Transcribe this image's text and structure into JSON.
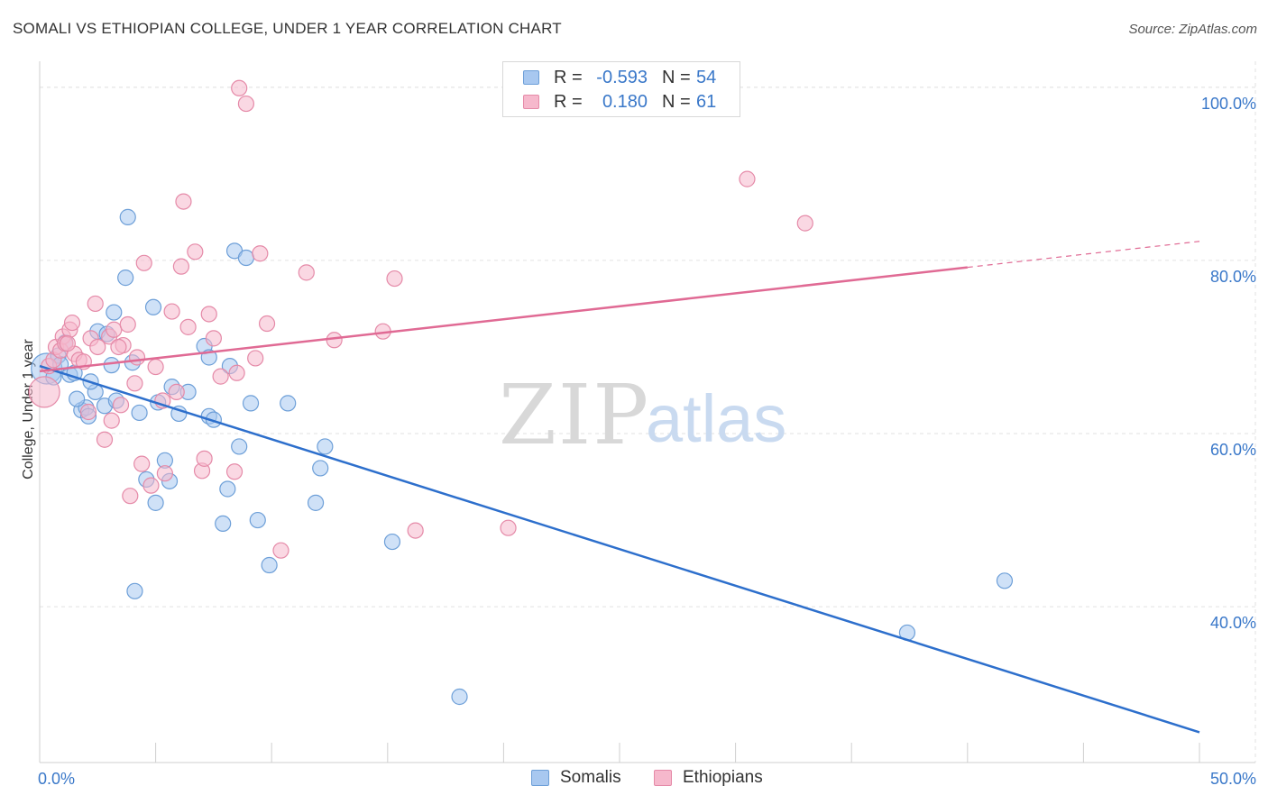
{
  "header": {
    "title": "SOMALI VS ETHIOPIAN COLLEGE, UNDER 1 YEAR CORRELATION CHART",
    "source": "Source: ZipAtlas.com"
  },
  "watermark": {
    "zip": "ZIP",
    "atlas": "atlas"
  },
  "legend_top": {
    "rows": [
      {
        "r_label": "R =",
        "r_value": "-0.593",
        "n_label": "N =",
        "n_value": "54"
      },
      {
        "r_label": "R =",
        "r_value": "0.180",
        "n_label": "N =",
        "n_value": "61"
      }
    ]
  },
  "legend_bottom": {
    "items": [
      "Somalis",
      "Ethiopians"
    ]
  },
  "colors": {
    "blue_fill": "#a8c8f0",
    "blue_stroke": "#6d9fd8",
    "blue_line": "#2d6fcc",
    "pink_fill": "#f6b8cc",
    "pink_stroke": "#e58aa8",
    "pink_line": "#e06a94",
    "axis_text": "#3a78c9",
    "grid": "#e2e2e2"
  },
  "chart_data": {
    "type": "scatter",
    "title": "SOMALI VS ETHIOPIAN COLLEGE, UNDER 1 YEAR CORRELATION CHART",
    "xlabel": "",
    "ylabel": "College, Under 1 year",
    "xlim": [
      0,
      50
    ],
    "ylim": [
      22,
      103
    ],
    "x_ticks": [
      {
        "value": 0,
        "label": "0.0%"
      },
      {
        "value": 50,
        "label": "50.0%"
      }
    ],
    "y_ticks": [
      {
        "value": 40,
        "label": "40.0%"
      },
      {
        "value": 60,
        "label": "60.0%"
      },
      {
        "value": 80,
        "label": "80.0%"
      },
      {
        "value": 100,
        "label": "100.0%"
      }
    ],
    "grid": true,
    "legend_position": "top-center",
    "series": [
      {
        "name": "Somalis",
        "color": "blue",
        "r": -0.593,
        "n": 54,
        "trend": {
          "x": [
            0,
            50
          ],
          "y": [
            67.8,
            25.5
          ],
          "dashed_from": null
        },
        "points": [
          {
            "x": 0.3,
            "y": 67.5,
            "big": true
          },
          {
            "x": 0.8,
            "y": 69.0
          },
          {
            "x": 0.9,
            "y": 68.0
          },
          {
            "x": 1.3,
            "y": 66.8
          },
          {
            "x": 1.5,
            "y": 67.0
          },
          {
            "x": 1.1,
            "y": 70.5
          },
          {
            "x": 1.8,
            "y": 62.7
          },
          {
            "x": 2.0,
            "y": 63.0
          },
          {
            "x": 2.1,
            "y": 62.0
          },
          {
            "x": 2.5,
            "y": 71.8
          },
          {
            "x": 2.4,
            "y": 64.8
          },
          {
            "x": 2.8,
            "y": 63.2
          },
          {
            "x": 3.1,
            "y": 67.9
          },
          {
            "x": 3.2,
            "y": 74.0
          },
          {
            "x": 3.3,
            "y": 63.8
          },
          {
            "x": 2.9,
            "y": 71.5
          },
          {
            "x": 3.7,
            "y": 78.0
          },
          {
            "x": 3.8,
            "y": 85.0
          },
          {
            "x": 4.0,
            "y": 68.2
          },
          {
            "x": 4.3,
            "y": 62.4
          },
          {
            "x": 4.1,
            "y": 41.8
          },
          {
            "x": 4.6,
            "y": 54.7
          },
          {
            "x": 4.9,
            "y": 74.6
          },
          {
            "x": 5.0,
            "y": 52.0
          },
          {
            "x": 5.1,
            "y": 63.6
          },
          {
            "x": 5.4,
            "y": 56.9
          },
          {
            "x": 5.6,
            "y": 54.5
          },
          {
            "x": 5.7,
            "y": 65.4
          },
          {
            "x": 6.0,
            "y": 62.3
          },
          {
            "x": 6.4,
            "y": 64.8
          },
          {
            "x": 7.1,
            "y": 70.1
          },
          {
            "x": 7.3,
            "y": 68.8
          },
          {
            "x": 7.3,
            "y": 62.0
          },
          {
            "x": 7.5,
            "y": 61.6
          },
          {
            "x": 7.9,
            "y": 49.6
          },
          {
            "x": 8.1,
            "y": 53.6
          },
          {
            "x": 8.2,
            "y": 67.8
          },
          {
            "x": 8.4,
            "y": 81.1
          },
          {
            "x": 8.6,
            "y": 58.5
          },
          {
            "x": 8.9,
            "y": 80.3
          },
          {
            "x": 9.1,
            "y": 63.5
          },
          {
            "x": 9.4,
            "y": 50.0
          },
          {
            "x": 9.9,
            "y": 44.8
          },
          {
            "x": 10.7,
            "y": 63.5
          },
          {
            "x": 11.9,
            "y": 52.0
          },
          {
            "x": 12.1,
            "y": 56.0
          },
          {
            "x": 12.3,
            "y": 58.5
          },
          {
            "x": 15.2,
            "y": 47.5
          },
          {
            "x": 18.1,
            "y": 29.6
          },
          {
            "x": 37.4,
            "y": 37.0
          },
          {
            "x": 41.6,
            "y": 43.0
          },
          {
            "x": 1.6,
            "y": 64.0
          },
          {
            "x": 2.2,
            "y": 66.0
          },
          {
            "x": 0.6,
            "y": 66.5
          }
        ]
      },
      {
        "name": "Ethiopians",
        "color": "pink",
        "r": 0.18,
        "n": 61,
        "trend": {
          "x": [
            0,
            50
          ],
          "y": [
            67.2,
            82.2
          ],
          "dashed_from": 40
        },
        "points": [
          {
            "x": 0.2,
            "y": 64.8,
            "big": true
          },
          {
            "x": 0.4,
            "y": 67.8
          },
          {
            "x": 0.6,
            "y": 68.5
          },
          {
            "x": 0.7,
            "y": 70.0
          },
          {
            "x": 0.9,
            "y": 69.6
          },
          {
            "x": 1.0,
            "y": 71.2
          },
          {
            "x": 1.1,
            "y": 70.4
          },
          {
            "x": 1.3,
            "y": 72.0
          },
          {
            "x": 1.4,
            "y": 72.8
          },
          {
            "x": 1.5,
            "y": 69.2
          },
          {
            "x": 1.7,
            "y": 68.5
          },
          {
            "x": 1.9,
            "y": 68.3
          },
          {
            "x": 2.1,
            "y": 62.5
          },
          {
            "x": 2.2,
            "y": 71.0
          },
          {
            "x": 2.4,
            "y": 75.0
          },
          {
            "x": 2.5,
            "y": 70.0
          },
          {
            "x": 2.8,
            "y": 59.3
          },
          {
            "x": 3.0,
            "y": 71.2
          },
          {
            "x": 3.1,
            "y": 61.5
          },
          {
            "x": 3.2,
            "y": 72.0
          },
          {
            "x": 3.5,
            "y": 63.3
          },
          {
            "x": 3.6,
            "y": 70.2
          },
          {
            "x": 3.8,
            "y": 72.6
          },
          {
            "x": 3.9,
            "y": 52.8
          },
          {
            "x": 4.1,
            "y": 65.8
          },
          {
            "x": 4.2,
            "y": 68.8
          },
          {
            "x": 4.4,
            "y": 56.5
          },
          {
            "x": 4.5,
            "y": 79.7
          },
          {
            "x": 4.8,
            "y": 54.0
          },
          {
            "x": 5.0,
            "y": 67.7
          },
          {
            "x": 5.3,
            "y": 63.8
          },
          {
            "x": 5.4,
            "y": 55.4
          },
          {
            "x": 5.7,
            "y": 74.1
          },
          {
            "x": 5.9,
            "y": 64.8
          },
          {
            "x": 6.1,
            "y": 79.3
          },
          {
            "x": 6.2,
            "y": 86.8
          },
          {
            "x": 6.4,
            "y": 72.3
          },
          {
            "x": 6.7,
            "y": 81.0
          },
          {
            "x": 7.0,
            "y": 55.7
          },
          {
            "x": 7.1,
            "y": 57.1
          },
          {
            "x": 7.3,
            "y": 73.8
          },
          {
            "x": 7.5,
            "y": 71.0
          },
          {
            "x": 7.8,
            "y": 66.6
          },
          {
            "x": 8.4,
            "y": 55.6
          },
          {
            "x": 8.6,
            "y": 99.9
          },
          {
            "x": 8.9,
            "y": 98.1
          },
          {
            "x": 9.3,
            "y": 68.7
          },
          {
            "x": 9.5,
            "y": 80.8
          },
          {
            "x": 9.8,
            "y": 72.7
          },
          {
            "x": 10.4,
            "y": 46.5
          },
          {
            "x": 11.5,
            "y": 78.6
          },
          {
            "x": 12.7,
            "y": 70.8
          },
          {
            "x": 14.8,
            "y": 71.8
          },
          {
            "x": 15.3,
            "y": 77.9
          },
          {
            "x": 16.2,
            "y": 48.8
          },
          {
            "x": 20.2,
            "y": 49.1
          },
          {
            "x": 30.5,
            "y": 89.4
          },
          {
            "x": 33.0,
            "y": 84.3
          },
          {
            "x": 8.5,
            "y": 67.0
          },
          {
            "x": 1.2,
            "y": 70.4
          },
          {
            "x": 3.4,
            "y": 70.0
          }
        ]
      }
    ]
  }
}
